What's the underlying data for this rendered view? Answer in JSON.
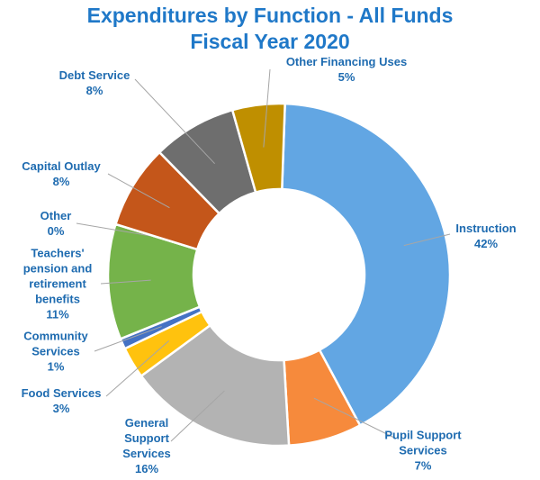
{
  "chart_data": {
    "type": "donut",
    "title": "Expenditures by Function - All Funds",
    "subtitle": "Fiscal Year 2020",
    "categories": [
      "Instruction",
      "Pupil Support Services",
      "General Support Services",
      "Food Services",
      "Community Services",
      "Teachers' pension and retirement benefits",
      "Other",
      "Capital Outlay",
      "Debt Service",
      "Other Financing Uses"
    ],
    "values": [
      42,
      7,
      16,
      3,
      1,
      11,
      0,
      8,
      8,
      5
    ],
    "value_labels": [
      "42%",
      "7%",
      "16%",
      "3%",
      "1%",
      "11%",
      "0%",
      "8%",
      "8%",
      "5%"
    ],
    "colors": [
      "#62a6e3",
      "#f68a3c",
      "#b3b3b3",
      "#ffc20e",
      "#4472c4",
      "#75b34a",
      "#d9d9d9",
      "#c4561a",
      "#6e6e6e",
      "#bf8f00"
    ]
  }
}
